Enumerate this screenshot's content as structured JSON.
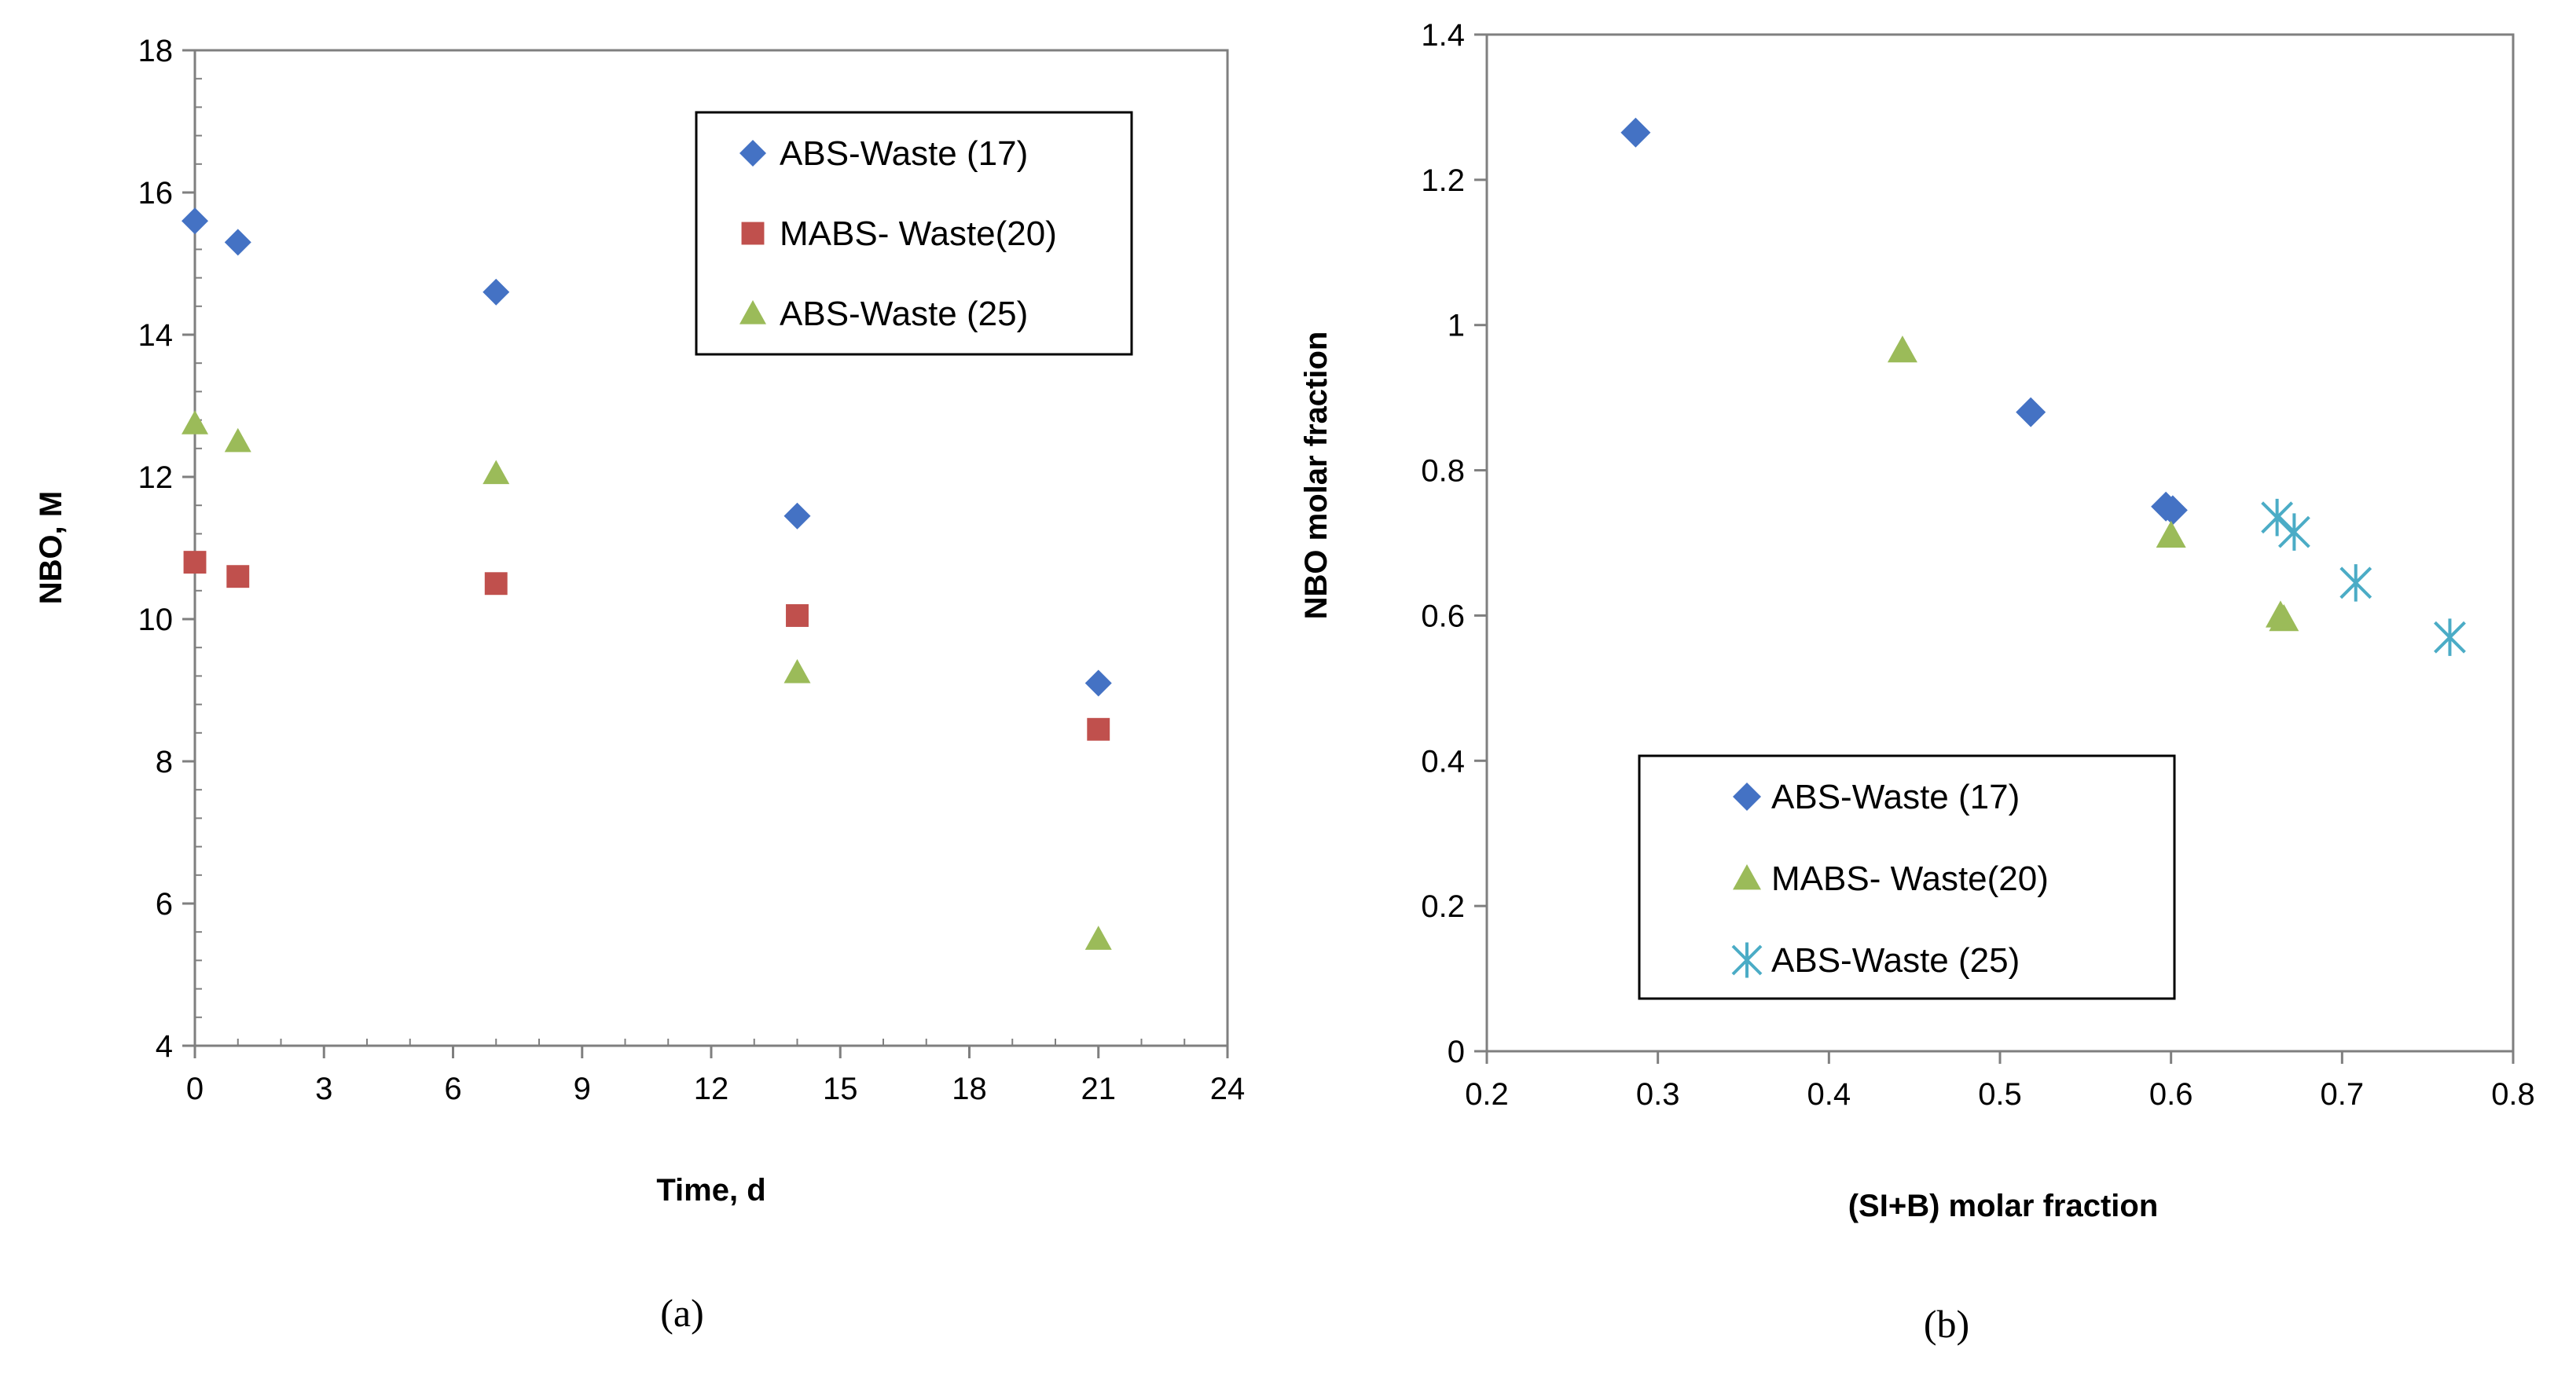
{
  "chart_data": [
    {
      "type": "scatter",
      "panel_label": "(a)",
      "xlabel": "Time, d",
      "ylabel": "NBO, M",
      "xlim": [
        0,
        24
      ],
      "ylim": [
        4,
        18
      ],
      "xticks": [
        0,
        3,
        6,
        9,
        12,
        15,
        18,
        21,
        24
      ],
      "yticks": [
        4,
        6,
        8,
        10,
        12,
        14,
        16,
        18
      ],
      "gridlines": false,
      "legend_position": "top-right",
      "series": [
        {
          "name": "ABS-Waste (17)",
          "marker": "diamond",
          "color": "#4472C4",
          "x": [
            0,
            1,
            7,
            14,
            21
          ],
          "y": [
            15.6,
            15.3,
            14.6,
            11.45,
            9.1
          ]
        },
        {
          "name": "MABS- Waste(20)",
          "marker": "square",
          "color": "#C0504D",
          "x": [
            0,
            1,
            7,
            14,
            21
          ],
          "y": [
            10.8,
            10.6,
            10.5,
            10.05,
            8.45
          ]
        },
        {
          "name": "ABS-Waste (25)",
          "marker": "triangle",
          "color": "#9BBB59",
          "x": [
            0,
            1,
            7,
            14,
            21
          ],
          "y": [
            12.75,
            12.5,
            12.05,
            9.25,
            5.5
          ]
        }
      ]
    },
    {
      "type": "scatter",
      "panel_label": "(b)",
      "xlabel": "(SI+B) molar fraction",
      "ylabel": "NBO molar fraction",
      "xlim": [
        0.2,
        0.8
      ],
      "ylim": [
        0,
        1.4
      ],
      "xticks": [
        0.2,
        0.3,
        0.4,
        0.5,
        0.6,
        0.7,
        0.8
      ],
      "yticks": [
        0,
        0.2,
        0.4,
        0.6,
        0.8,
        1,
        1.2,
        1.4
      ],
      "gridlines": false,
      "legend_position": "bottom-left",
      "series": [
        {
          "name": "ABS-Waste (17)",
          "marker": "diamond",
          "color": "#4472C4",
          "x": [
            0.287,
            0.518,
            0.597,
            0.601
          ],
          "y": [
            1.265,
            0.88,
            0.75,
            0.745
          ]
        },
        {
          "name": "MABS- Waste(20)",
          "marker": "triangle",
          "color": "#9BBB59",
          "x": [
            0.443,
            0.6,
            0.664,
            0.666
          ],
          "y": [
            0.965,
            0.71,
            0.6,
            0.595
          ]
        },
        {
          "name": "ABS-Waste (25)",
          "marker": "asterisk",
          "color": "#4BACC6",
          "x": [
            0.662,
            0.672,
            0.708,
            0.763
          ],
          "y": [
            0.735,
            0.715,
            0.645,
            0.57
          ]
        }
      ]
    }
  ]
}
